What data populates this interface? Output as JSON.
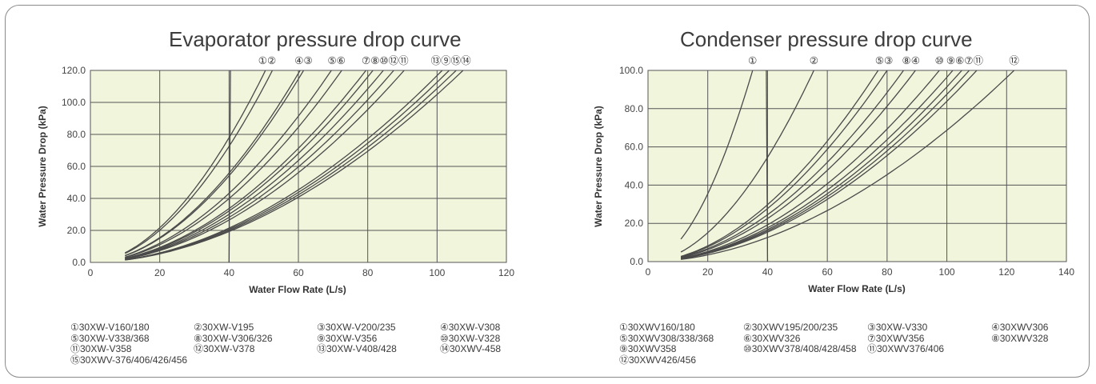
{
  "chart_data": [
    {
      "type": "line",
      "title": "Evaporator pressure drop curve",
      "xlabel": "Water Flow Rate (L/s)",
      "ylabel": "Water Pressure Drop (kPa)",
      "xlim": [
        0,
        120
      ],
      "ylim": [
        0,
        120
      ],
      "x_ticks": [
        "0",
        "20",
        "40",
        "60",
        "80",
        "100",
        "120"
      ],
      "y_ticks": [
        "0.0",
        "20.0",
        "40.0",
        "60.0",
        "80.0",
        "100.0",
        "120.0"
      ],
      "grid": true,
      "plot_bg": "#f0f5dc",
      "line_color": "#4a4a4a",
      "top_labels": [
        {
          "text": "①②",
          "x": 51
        },
        {
          "text": "④③",
          "x": 61.5
        },
        {
          "text": "⑤⑥",
          "x": 71
        },
        {
          "text": "⑦⑧⑩⑫⑪",
          "x": 85
        },
        {
          "text": "⑬⑨⑮⑭",
          "x": 104
        }
      ],
      "series": [
        {
          "x_min": 10,
          "x_max": 50.5,
          "y_max": 120
        },
        {
          "x_min": 10,
          "x_max": 52.5,
          "y_max": 120
        },
        {
          "x_min": 10,
          "x_max": 60.5,
          "y_max": 120
        },
        {
          "x_min": 10,
          "x_max": 61.5,
          "y_max": 120
        },
        {
          "x_min": 10,
          "x_max": 69.5,
          "y_max": 120
        },
        {
          "x_min": 10,
          "x_max": 72.5,
          "y_max": 120
        },
        {
          "x_min": 10,
          "x_max": 79.5,
          "y_max": 120
        },
        {
          "x_min": 10,
          "x_max": 81.5,
          "y_max": 120
        },
        {
          "x_min": 10,
          "x_max": 84.5,
          "y_max": 120
        },
        {
          "x_min": 10,
          "x_max": 87.5,
          "y_max": 120
        },
        {
          "x_min": 10,
          "x_max": 90.5,
          "y_max": 120
        },
        {
          "x_min": 10,
          "x_max": 101.5,
          "y_max": 120
        },
        {
          "x_min": 10,
          "x_max": 103.5,
          "y_max": 120
        },
        {
          "x_min": 10,
          "x_max": 105.5,
          "y_max": 120
        },
        {
          "x_min": 10,
          "x_max": 107.5,
          "y_max": 120
        }
      ],
      "extra_lines": [
        {
          "x1": 40,
          "y1": 0,
          "x2": 40.4,
          "y2": 120
        }
      ],
      "legend": [
        [
          "①30XW-V160/180",
          "②30XW-V195",
          "③30XW-V200/235",
          "④30XW-V308"
        ],
        [
          "⑤30XW-V338/368",
          "⑧30XW-V306/326",
          "⑨30XW-V356",
          "⑩30XW-V328"
        ],
        [
          "⑪30XW-V358",
          "⑫30XW-V378",
          "⑬30XW-V408/428",
          "⑭30XWV-458"
        ],
        [
          "⑮30XWV-376/406/426/456"
        ]
      ]
    },
    {
      "type": "line",
      "title": "Condenser pressure drop curve",
      "xlabel": "Water Flow Rate (L/s)",
      "ylabel": "Water Pressure Drop (kPa)",
      "xlim": [
        0,
        140
      ],
      "ylim": [
        0,
        100
      ],
      "x_ticks": [
        "0",
        "20",
        "40",
        "60",
        "80",
        "100",
        "120",
        "140"
      ],
      "y_ticks": [
        "0.0",
        "20.0",
        "40.0",
        "60.0",
        "80.0",
        "100.0"
      ],
      "grid": true,
      "plot_bg": "#f0f5dc",
      "line_color": "#4a4a4a",
      "top_labels": [
        {
          "text": "①",
          "x": 35
        },
        {
          "text": "②",
          "x": 55.5
        },
        {
          "text": "⑤③",
          "x": 79
        },
        {
          "text": "⑧④",
          "x": 88
        },
        {
          "text": "⑩",
          "x": 97.5
        },
        {
          "text": "⑨⑥⑦⑪",
          "x": 106
        },
        {
          "text": "⑫",
          "x": 122.5
        }
      ],
      "series": [
        {
          "x_min": 11,
          "x_max": 35,
          "y_max": 100
        },
        {
          "x_min": 11,
          "x_max": 55.5,
          "y_max": 100
        },
        {
          "x_min": 11,
          "x_max": 77,
          "y_max": 100
        },
        {
          "x_min": 11,
          "x_max": 80,
          "y_max": 100
        },
        {
          "x_min": 11,
          "x_max": 85.5,
          "y_max": 100
        },
        {
          "x_min": 11,
          "x_max": 89.5,
          "y_max": 100
        },
        {
          "x_min": 11,
          "x_max": 97.5,
          "y_max": 100
        },
        {
          "x_min": 11,
          "x_max": 102,
          "y_max": 100
        },
        {
          "x_min": 11,
          "x_max": 105,
          "y_max": 100
        },
        {
          "x_min": 11,
          "x_max": 107.5,
          "y_max": 100
        },
        {
          "x_min": 11,
          "x_max": 110,
          "y_max": 100
        },
        {
          "x_min": 11,
          "x_max": 122.5,
          "y_max": 100
        }
      ],
      "extra_lines": [
        {
          "x1": 40,
          "y1": 0,
          "x2": 39.6,
          "y2": 100
        }
      ],
      "legend": [
        [
          "①30XWV160/180",
          "②30XWV195/200/235",
          "③30XW-V330",
          "④30XWV306"
        ],
        [
          "⑤30XWV308/338/368",
          "⑥30XWV326",
          "⑦30XWV356",
          "⑧30XWV328"
        ],
        [
          "⑨30XWV358",
          "⑩30XWV378/408/428/458",
          "⑪30XWV376/406",
          ""
        ],
        [
          "⑫30XWV426/456"
        ]
      ]
    }
  ]
}
